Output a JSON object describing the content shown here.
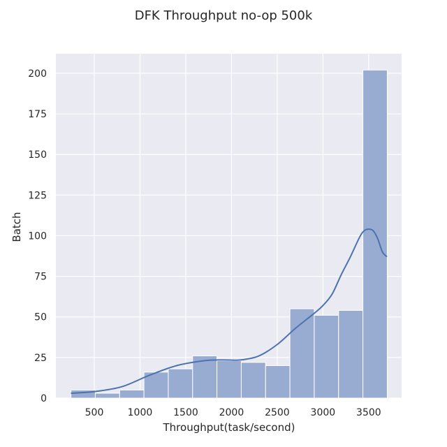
{
  "chart_data": {
    "type": "bar",
    "title": "DFK Throughput no-op 500k",
    "xlabel": "Throughput(task/second)",
    "ylabel": "Batch",
    "xlim": [
      80,
      3860
    ],
    "ylim": [
      0,
      212
    ],
    "xticks": [
      500,
      1000,
      1500,
      2000,
      2500,
      3000,
      3500
    ],
    "yticks": [
      0,
      25,
      50,
      75,
      100,
      125,
      150,
      175,
      200
    ],
    "grid": true,
    "bins": [
      {
        "x0": 245,
        "x1": 511,
        "count": 5
      },
      {
        "x0": 511,
        "x1": 777,
        "count": 3
      },
      {
        "x0": 777,
        "x1": 1043,
        "count": 5
      },
      {
        "x0": 1043,
        "x1": 1309,
        "count": 16
      },
      {
        "x0": 1309,
        "x1": 1575,
        "count": 18
      },
      {
        "x0": 1575,
        "x1": 1841,
        "count": 26
      },
      {
        "x0": 1841,
        "x1": 2107,
        "count": 23
      },
      {
        "x0": 2107,
        "x1": 2373,
        "count": 22
      },
      {
        "x0": 2373,
        "x1": 2639,
        "count": 20
      },
      {
        "x0": 2639,
        "x1": 2905,
        "count": 55
      },
      {
        "x0": 2905,
        "x1": 3171,
        "count": 51
      },
      {
        "x0": 3171,
        "x1": 3437,
        "count": 54
      },
      {
        "x0": 3437,
        "x1": 3703,
        "count": 202
      }
    ],
    "kde": {
      "x": [
        245,
        500,
        800,
        1100,
        1400,
        1700,
        1900,
        2100,
        2300,
        2500,
        2700,
        2900,
        3000,
        3100,
        3200,
        3300,
        3400,
        3450,
        3500,
        3550,
        3600,
        3650,
        3700
      ],
      "y": [
        3,
        4,
        7,
        14,
        20,
        23,
        23.5,
        23.5,
        26,
        33,
        43,
        52,
        57,
        64,
        76,
        87,
        99,
        103,
        104,
        103,
        98,
        90,
        87
      ]
    },
    "colors": {
      "bar_fill": "#98abd0",
      "bar_edge": "#ffffff",
      "kde_line": "#4c72b0",
      "plot_bg": "#eaeaf2",
      "grid": "#ffffff"
    }
  }
}
